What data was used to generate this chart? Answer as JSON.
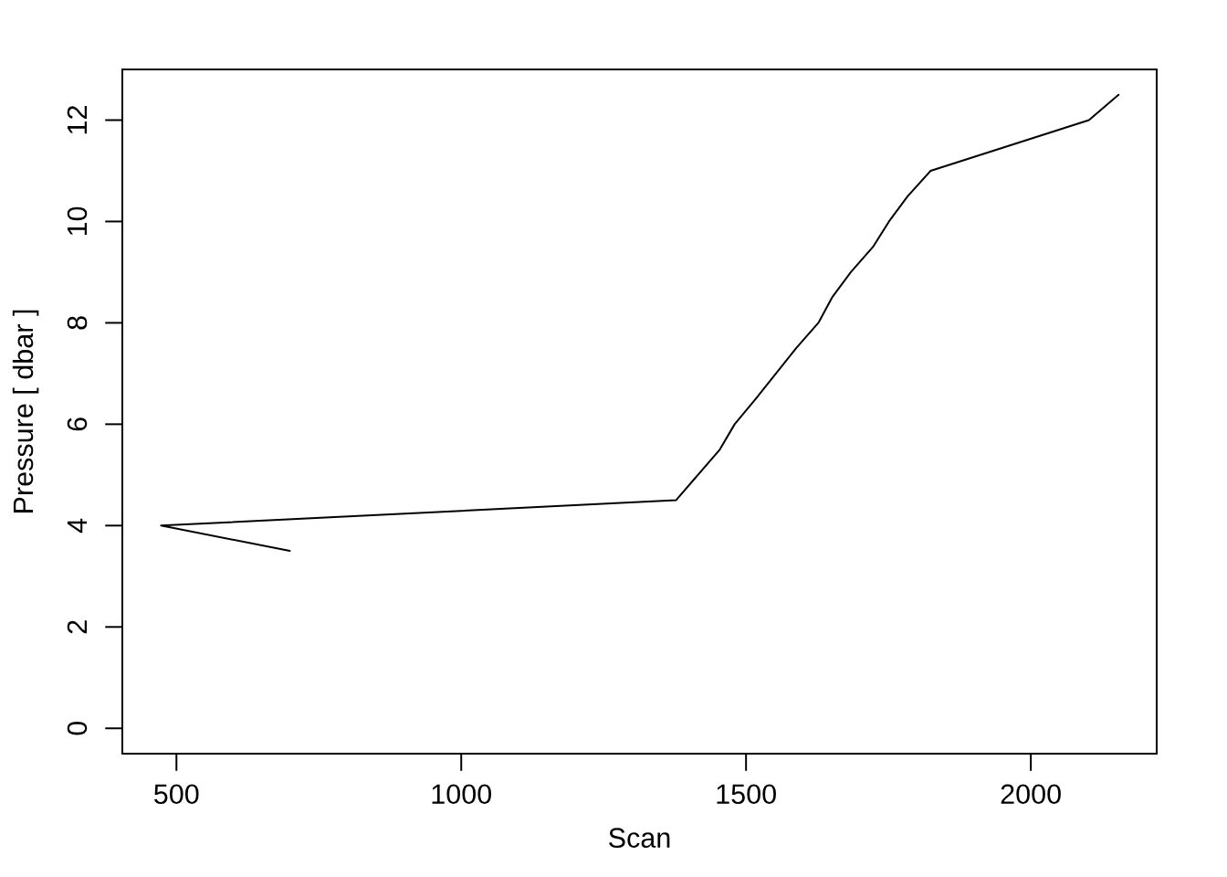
{
  "chart_data": {
    "type": "line",
    "xlabel": "Scan",
    "ylabel": "Pressure [ dbar ]",
    "series": [
      {
        "color": "#000000",
        "x": [
          699,
          473,
          1377,
          1454,
          1480,
          1517,
          1588,
          1627,
          1651,
          1684,
          1723,
          1751,
          1784,
          1824,
          2102,
          2154
        ],
        "values": [
          3.5,
          4,
          4.5,
          5.5,
          6,
          6.5,
          7.5,
          8,
          8.5,
          9,
          9.5,
          10,
          10.5,
          11,
          12,
          12.5
        ]
      }
    ],
    "xlim": [
      405,
      2221
    ],
    "ylim": [
      -0.5,
      13
    ],
    "xticks": [
      500,
      1000,
      1500,
      2000
    ],
    "yticks": [
      0,
      2,
      4,
      6,
      8,
      10,
      12
    ],
    "grid": false,
    "line_style": "solid"
  }
}
